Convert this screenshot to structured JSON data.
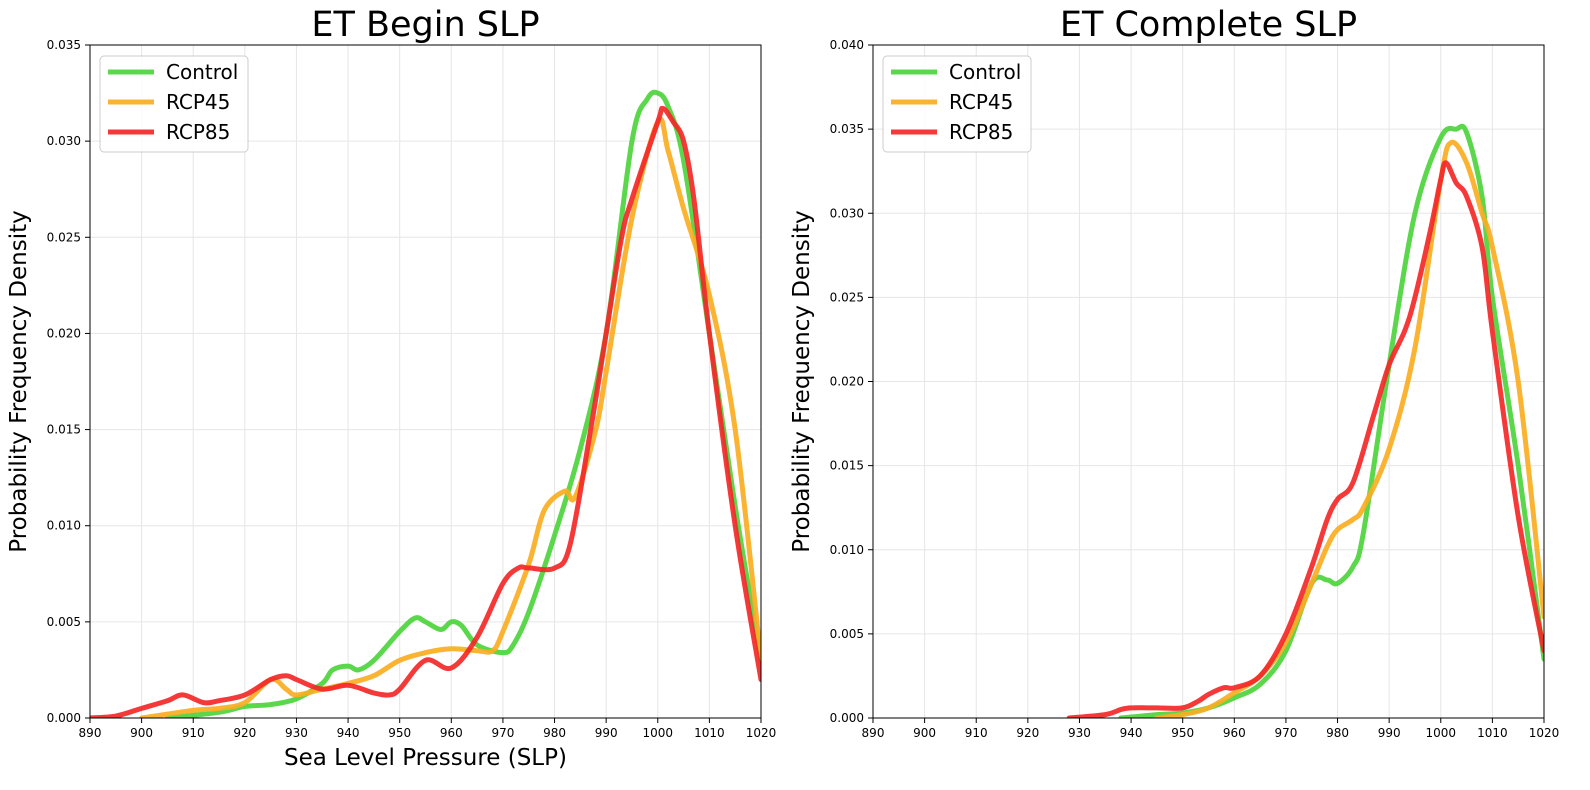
{
  "chart_data": [
    {
      "type": "line",
      "title": "ET Begin SLP",
      "xlabel": "Sea Level Pressure (SLP)",
      "ylabel": "Probability Frequency Density",
      "xlim": [
        890,
        1020
      ],
      "ylim": [
        0,
        0.035
      ],
      "xticks": [
        "890",
        "900",
        "910",
        "920",
        "930",
        "940",
        "950",
        "960",
        "970",
        "980",
        "990",
        "1000",
        "1010",
        "1020"
      ],
      "yticks": [
        "0.000",
        "0.005",
        "0.010",
        "0.015",
        "0.020",
        "0.025",
        "0.030",
        "0.035"
      ],
      "grid": true,
      "legend": "top-left",
      "series": [
        {
          "name": "Control",
          "color": "#4cd43c",
          "x": [
            905,
            915,
            920,
            925,
            930,
            935,
            937,
            940,
            942,
            945,
            950,
            953,
            955,
            958,
            960,
            962,
            965,
            970,
            972,
            975,
            980,
            985,
            990,
            995,
            998,
            1000,
            1002,
            1005,
            1010,
            1015,
            1020
          ],
          "y": [
            0.0,
            0.0003,
            0.0006,
            0.0007,
            0.001,
            0.0018,
            0.0025,
            0.0027,
            0.0025,
            0.003,
            0.0045,
            0.0052,
            0.005,
            0.0046,
            0.005,
            0.0048,
            0.0038,
            0.0034,
            0.0038,
            0.0055,
            0.0095,
            0.014,
            0.02,
            0.03,
            0.0322,
            0.0325,
            0.0318,
            0.029,
            0.02,
            0.011,
            0.003
          ]
        },
        {
          "name": "RCP45",
          "color": "#fbad21",
          "x": [
            900,
            905,
            910,
            915,
            920,
            925,
            928,
            930,
            935,
            940,
            945,
            950,
            955,
            960,
            965,
            968,
            970,
            975,
            978,
            982,
            984,
            988,
            990,
            995,
            1000,
            1002,
            1005,
            1010,
            1015,
            1020
          ],
          "y": [
            0.0,
            0.0002,
            0.0004,
            0.0005,
            0.0008,
            0.002,
            0.0015,
            0.0012,
            0.0015,
            0.0018,
            0.0022,
            0.003,
            0.0034,
            0.0036,
            0.0035,
            0.0035,
            0.0045,
            0.008,
            0.0108,
            0.0118,
            0.0115,
            0.015,
            0.018,
            0.026,
            0.031,
            0.0295,
            0.0265,
            0.022,
            0.015,
            0.003
          ]
        },
        {
          "name": "RCP85",
          "color": "#f42727",
          "x": [
            890,
            895,
            900,
            905,
            908,
            912,
            915,
            920,
            925,
            928,
            930,
            935,
            940,
            945,
            948,
            950,
            955,
            960,
            965,
            970,
            973,
            975,
            980,
            983,
            987,
            990,
            993,
            995,
            1000,
            1001,
            1003,
            1005,
            1007,
            1010,
            1015,
            1020
          ],
          "y": [
            0.0,
            0.0001,
            0.0005,
            0.0009,
            0.0012,
            0.0008,
            0.0009,
            0.0012,
            0.002,
            0.0022,
            0.002,
            0.0015,
            0.0017,
            0.0013,
            0.0012,
            0.0015,
            0.003,
            0.0026,
            0.0042,
            0.007,
            0.0078,
            0.0078,
            0.0078,
            0.009,
            0.015,
            0.02,
            0.025,
            0.027,
            0.031,
            0.0317,
            0.031,
            0.03,
            0.027,
            0.02,
            0.01,
            0.002
          ]
        }
      ]
    },
    {
      "type": "line",
      "title": "ET Complete SLP",
      "xlabel": "",
      "ylabel": "Probability Frequency Density",
      "xlim": [
        890,
        1020
      ],
      "ylim": [
        0,
        0.04
      ],
      "xticks": [
        "890",
        "900",
        "910",
        "920",
        "930",
        "940",
        "950",
        "960",
        "970",
        "980",
        "990",
        "1000",
        "1010",
        "1020"
      ],
      "yticks": [
        "0.000",
        "0.005",
        "0.010",
        "0.015",
        "0.020",
        "0.025",
        "0.030",
        "0.035",
        "0.040"
      ],
      "grid": true,
      "legend": "top-left",
      "series": [
        {
          "name": "Control",
          "color": "#4cd43c",
          "x": [
            938,
            945,
            950,
            955,
            960,
            965,
            970,
            975,
            978,
            980,
            983,
            985,
            990,
            995,
            1000,
            1003,
            1005,
            1008,
            1010,
            1015,
            1020
          ],
          "y": [
            0.0,
            0.0002,
            0.0003,
            0.0006,
            0.0012,
            0.002,
            0.004,
            0.008,
            0.0082,
            0.008,
            0.009,
            0.011,
            0.021,
            0.03,
            0.0345,
            0.035,
            0.0348,
            0.031,
            0.025,
            0.015,
            0.0035
          ]
        },
        {
          "name": "RCP45",
          "color": "#fbad21",
          "x": [
            945,
            950,
            955,
            960,
            965,
            970,
            975,
            978,
            980,
            983,
            985,
            990,
            995,
            1000,
            1002,
            1005,
            1008,
            1010,
            1015,
            1020
          ],
          "y": [
            0.0,
            0.0002,
            0.0006,
            0.0015,
            0.0025,
            0.0045,
            0.008,
            0.0102,
            0.0112,
            0.0118,
            0.0125,
            0.016,
            0.022,
            0.032,
            0.0342,
            0.033,
            0.03,
            0.028,
            0.02,
            0.006
          ]
        },
        {
          "name": "RCP85",
          "color": "#f42727",
          "x": [
            928,
            935,
            938,
            940,
            945,
            950,
            953,
            955,
            958,
            960,
            965,
            970,
            975,
            978,
            980,
            983,
            987,
            990,
            993,
            995,
            998,
            1000,
            1001,
            1003,
            1005,
            1008,
            1010,
            1015,
            1020
          ],
          "y": [
            0.0,
            0.0002,
            0.0005,
            0.0006,
            0.0006,
            0.0006,
            0.001,
            0.0014,
            0.0018,
            0.0018,
            0.0025,
            0.005,
            0.009,
            0.0118,
            0.013,
            0.014,
            0.018,
            0.021,
            0.023,
            0.025,
            0.029,
            0.032,
            0.033,
            0.0318,
            0.031,
            0.028,
            0.023,
            0.012,
            0.004
          ]
        }
      ]
    }
  ]
}
